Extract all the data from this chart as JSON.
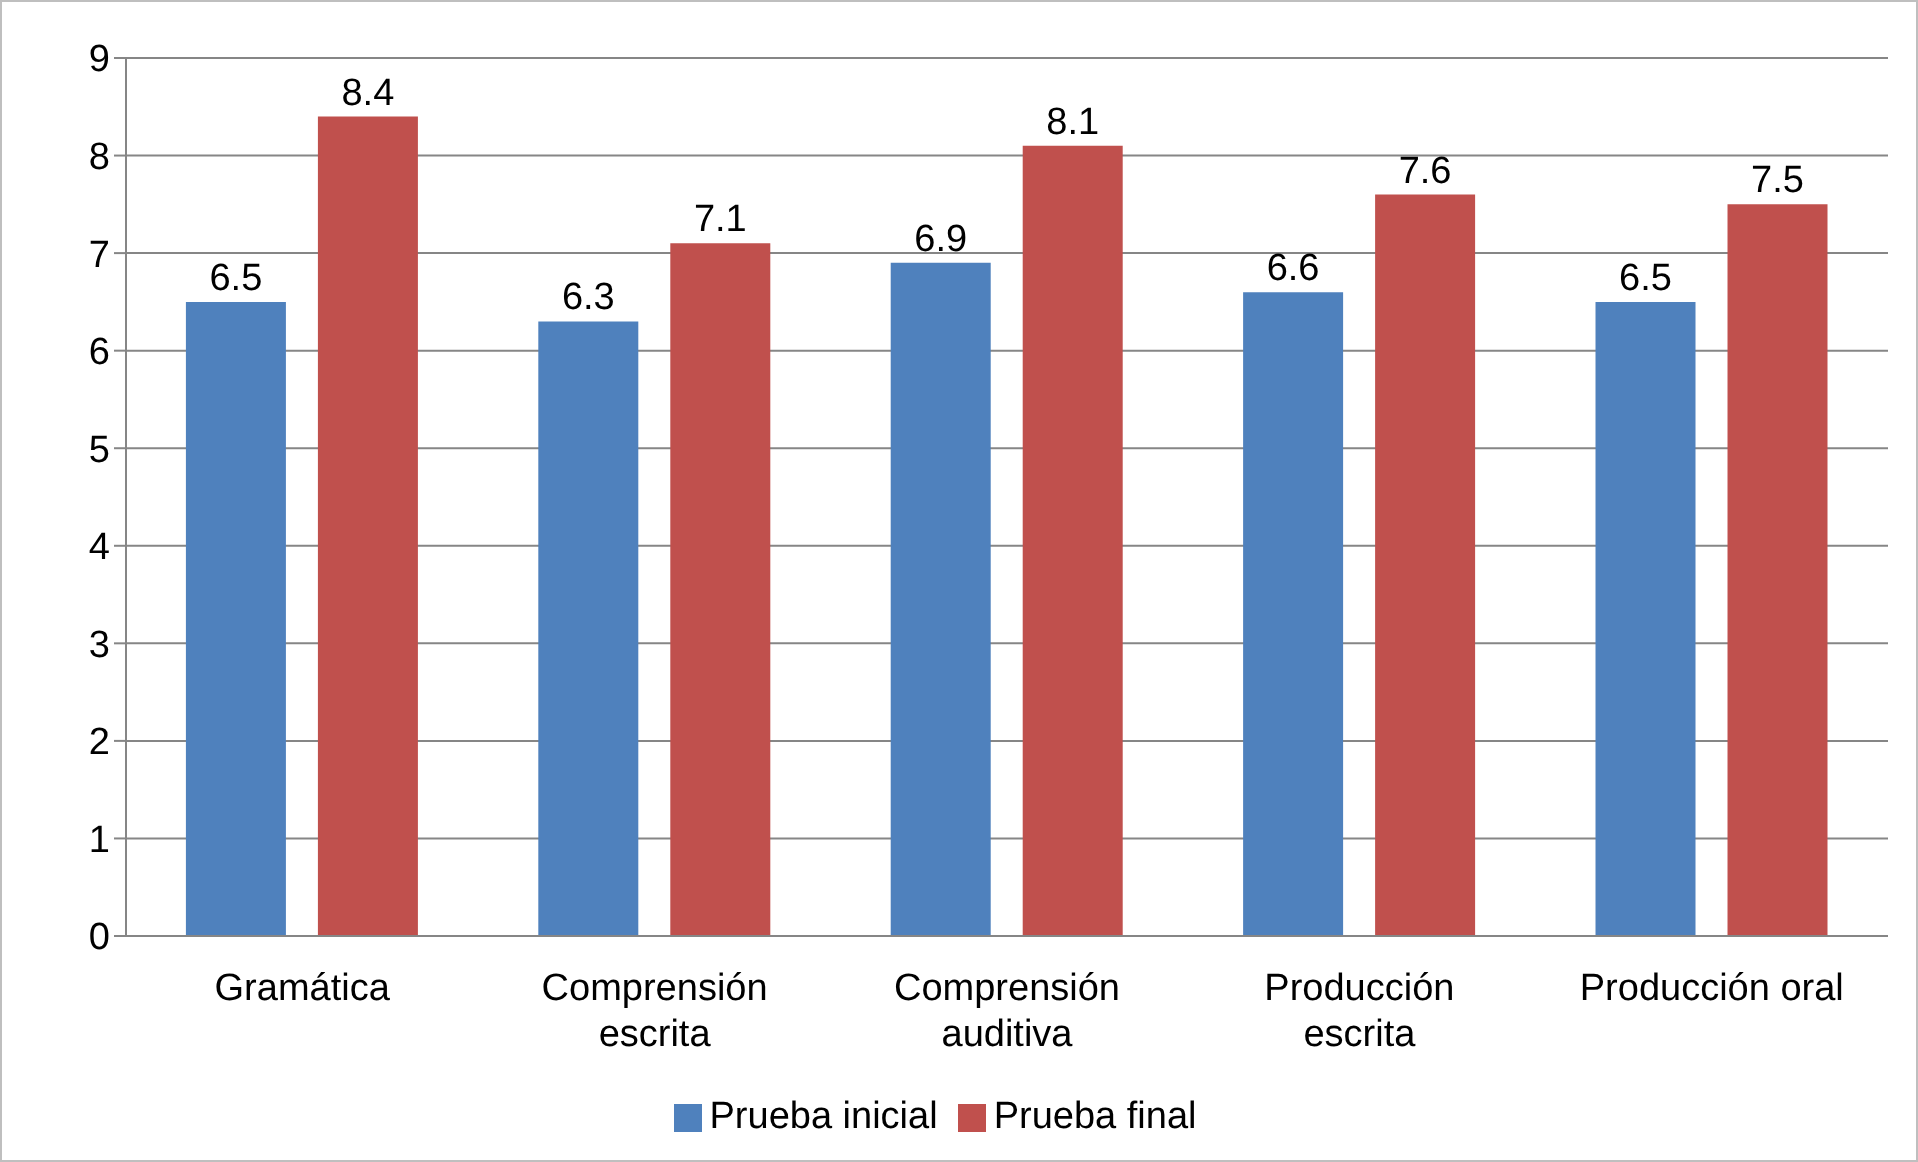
{
  "chart_data": {
    "type": "bar",
    "categories": [
      "Gramática",
      "Comprensión escrita",
      "Comprensión auditiva",
      "Producción escrita",
      "Producción oral"
    ],
    "series": [
      {
        "name": "Prueba inicial",
        "color": "#4f81bd",
        "values": [
          6.5,
          6.3,
          6.9,
          6.6,
          6.5
        ]
      },
      {
        "name": "Prueba final",
        "color": "#c0504d",
        "values": [
          8.4,
          7.1,
          8.1,
          7.6,
          7.5
        ]
      }
    ],
    "ylim": [
      0,
      9
    ],
    "yticks": [
      0,
      1,
      2,
      3,
      4,
      5,
      6,
      7,
      8,
      9
    ],
    "grid": "y",
    "legend": "bottom",
    "data_labels": true
  }
}
